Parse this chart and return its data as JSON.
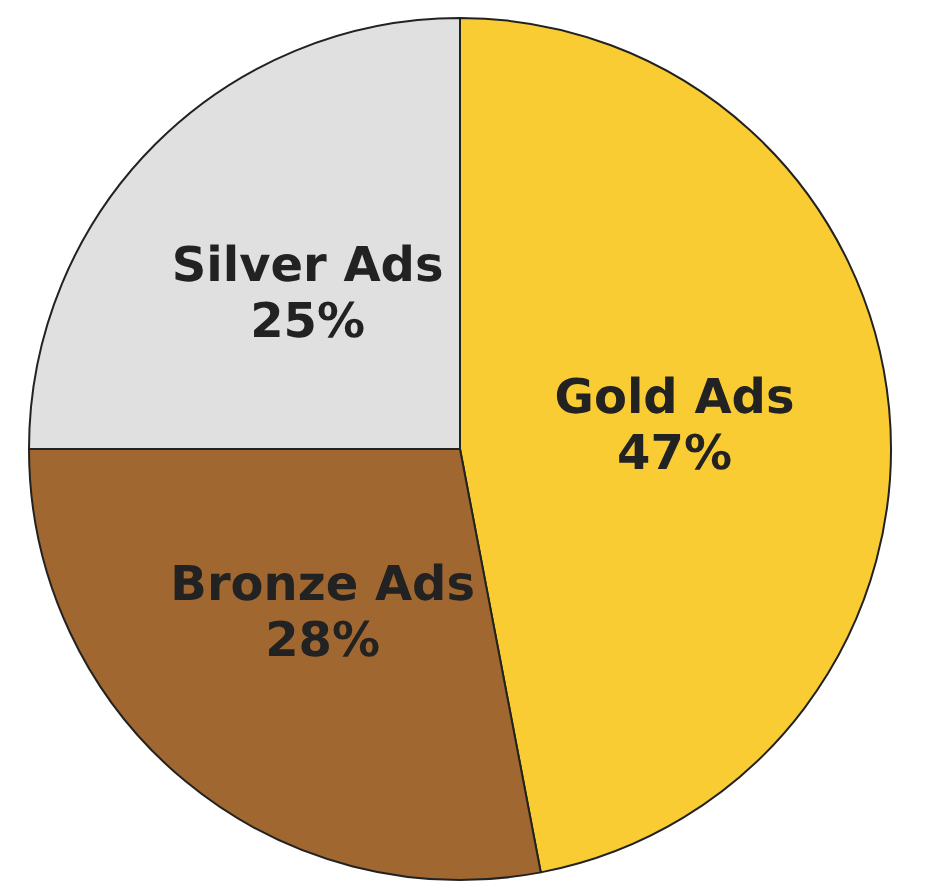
{
  "chart_data": {
    "type": "pie",
    "categories": [
      "Gold Ads",
      "Bronze Ads",
      "Silver Ads"
    ],
    "values": [
      47,
      28,
      25
    ],
    "value_labels": [
      "47%",
      "28%",
      "25%"
    ],
    "colors": [
      "#f9cc33",
      "#a06830",
      "#e0e0e0"
    ],
    "legend": false
  }
}
